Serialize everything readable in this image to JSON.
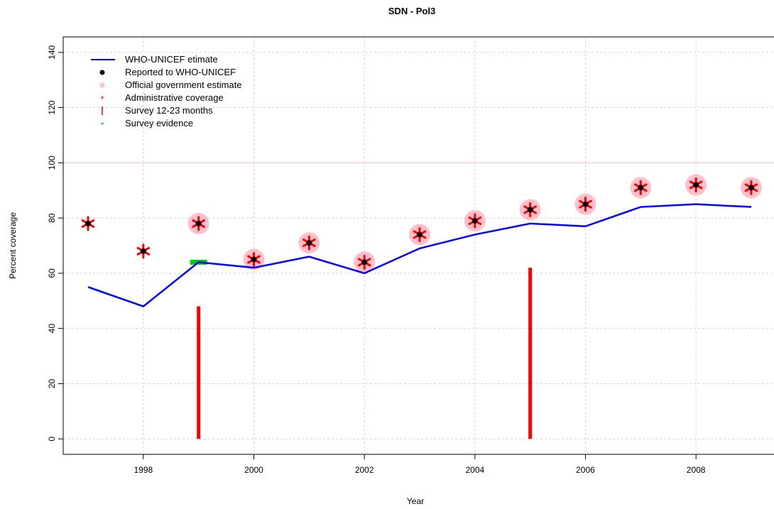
{
  "chart_data": {
    "type": "line",
    "title": "SDN  -  Pol3",
    "xlabel": "Year",
    "ylabel": "Percent coverage",
    "xlim": [
      1996.55,
      2009.45
    ],
    "ylim": [
      -5.6,
      145.6
    ],
    "x_ticks": [
      1998,
      2000,
      2002,
      2004,
      2006,
      2008
    ],
    "y_ticks": [
      0,
      20,
      40,
      60,
      80,
      100,
      120,
      140
    ],
    "grid": true,
    "legend_position": "top-left",
    "reference_line": {
      "y": 100,
      "color": "#ffc0cb"
    },
    "legend": [
      {
        "label": "WHO-UNICEF etimate",
        "symbol": "line",
        "color": "#0000ff"
      },
      {
        "label": "Reported to WHO-UNICEF",
        "symbol": "dot",
        "color": "#000000"
      },
      {
        "label": "Official government estimate",
        "symbol": "circle",
        "color": "#ffc0cb"
      },
      {
        "label": "Administrative coverage",
        "symbol": "star",
        "color": "#ff0000"
      },
      {
        "label": "Survey 12-23 months",
        "symbol": "vbar",
        "color": "#ff0000"
      },
      {
        "label": "Survey evidence",
        "symbol": "dash",
        "color": "#00cc00"
      }
    ],
    "series": [
      {
        "name": "WHO-UNICEF etimate",
        "kind": "line",
        "color": "#0000ff",
        "x": [
          1997,
          1998,
          1999,
          2000,
          2001,
          2002,
          2003,
          2004,
          2005,
          2006,
          2007,
          2008,
          2009
        ],
        "y": [
          55,
          48,
          64,
          62,
          66,
          60,
          69,
          74,
          78,
          77,
          84,
          85,
          84
        ]
      },
      {
        "name": "Official government estimate",
        "kind": "circle",
        "color": "#ffc0cb",
        "x": [
          1999,
          2000,
          2001,
          2002,
          2003,
          2004,
          2005,
          2006,
          2007,
          2008,
          2009
        ],
        "y": [
          78,
          65,
          71,
          64,
          74,
          79,
          83,
          85,
          91,
          92,
          91
        ]
      },
      {
        "name": "Administrative coverage",
        "kind": "star",
        "color": "#ff0000",
        "x": [
          1997,
          1998,
          1999,
          2000,
          2001,
          2002,
          2003,
          2004,
          2005,
          2006,
          2007,
          2008,
          2009
        ],
        "y": [
          78,
          68,
          78,
          65,
          71,
          64,
          74,
          79,
          83,
          85,
          91,
          92,
          91
        ]
      },
      {
        "name": "Reported to WHO-UNICEF",
        "kind": "dot",
        "color": "#000000",
        "x": [
          1997,
          1998,
          1999,
          2000,
          2001,
          2002,
          2003,
          2004,
          2005,
          2006,
          2007,
          2008,
          2009
        ],
        "y": [
          78,
          68,
          78,
          65,
          71,
          64,
          74,
          79,
          83,
          85,
          91,
          92,
          91
        ]
      },
      {
        "name": "Survey 12-23 months",
        "kind": "vbar",
        "color": "#ff0000",
        "x": [
          1999,
          2005
        ],
        "y": [
          48,
          62
        ]
      },
      {
        "name": "Survey evidence",
        "kind": "dash",
        "color": "#00cc00",
        "x": [
          1999
        ],
        "y": [
          64
        ]
      }
    ]
  }
}
